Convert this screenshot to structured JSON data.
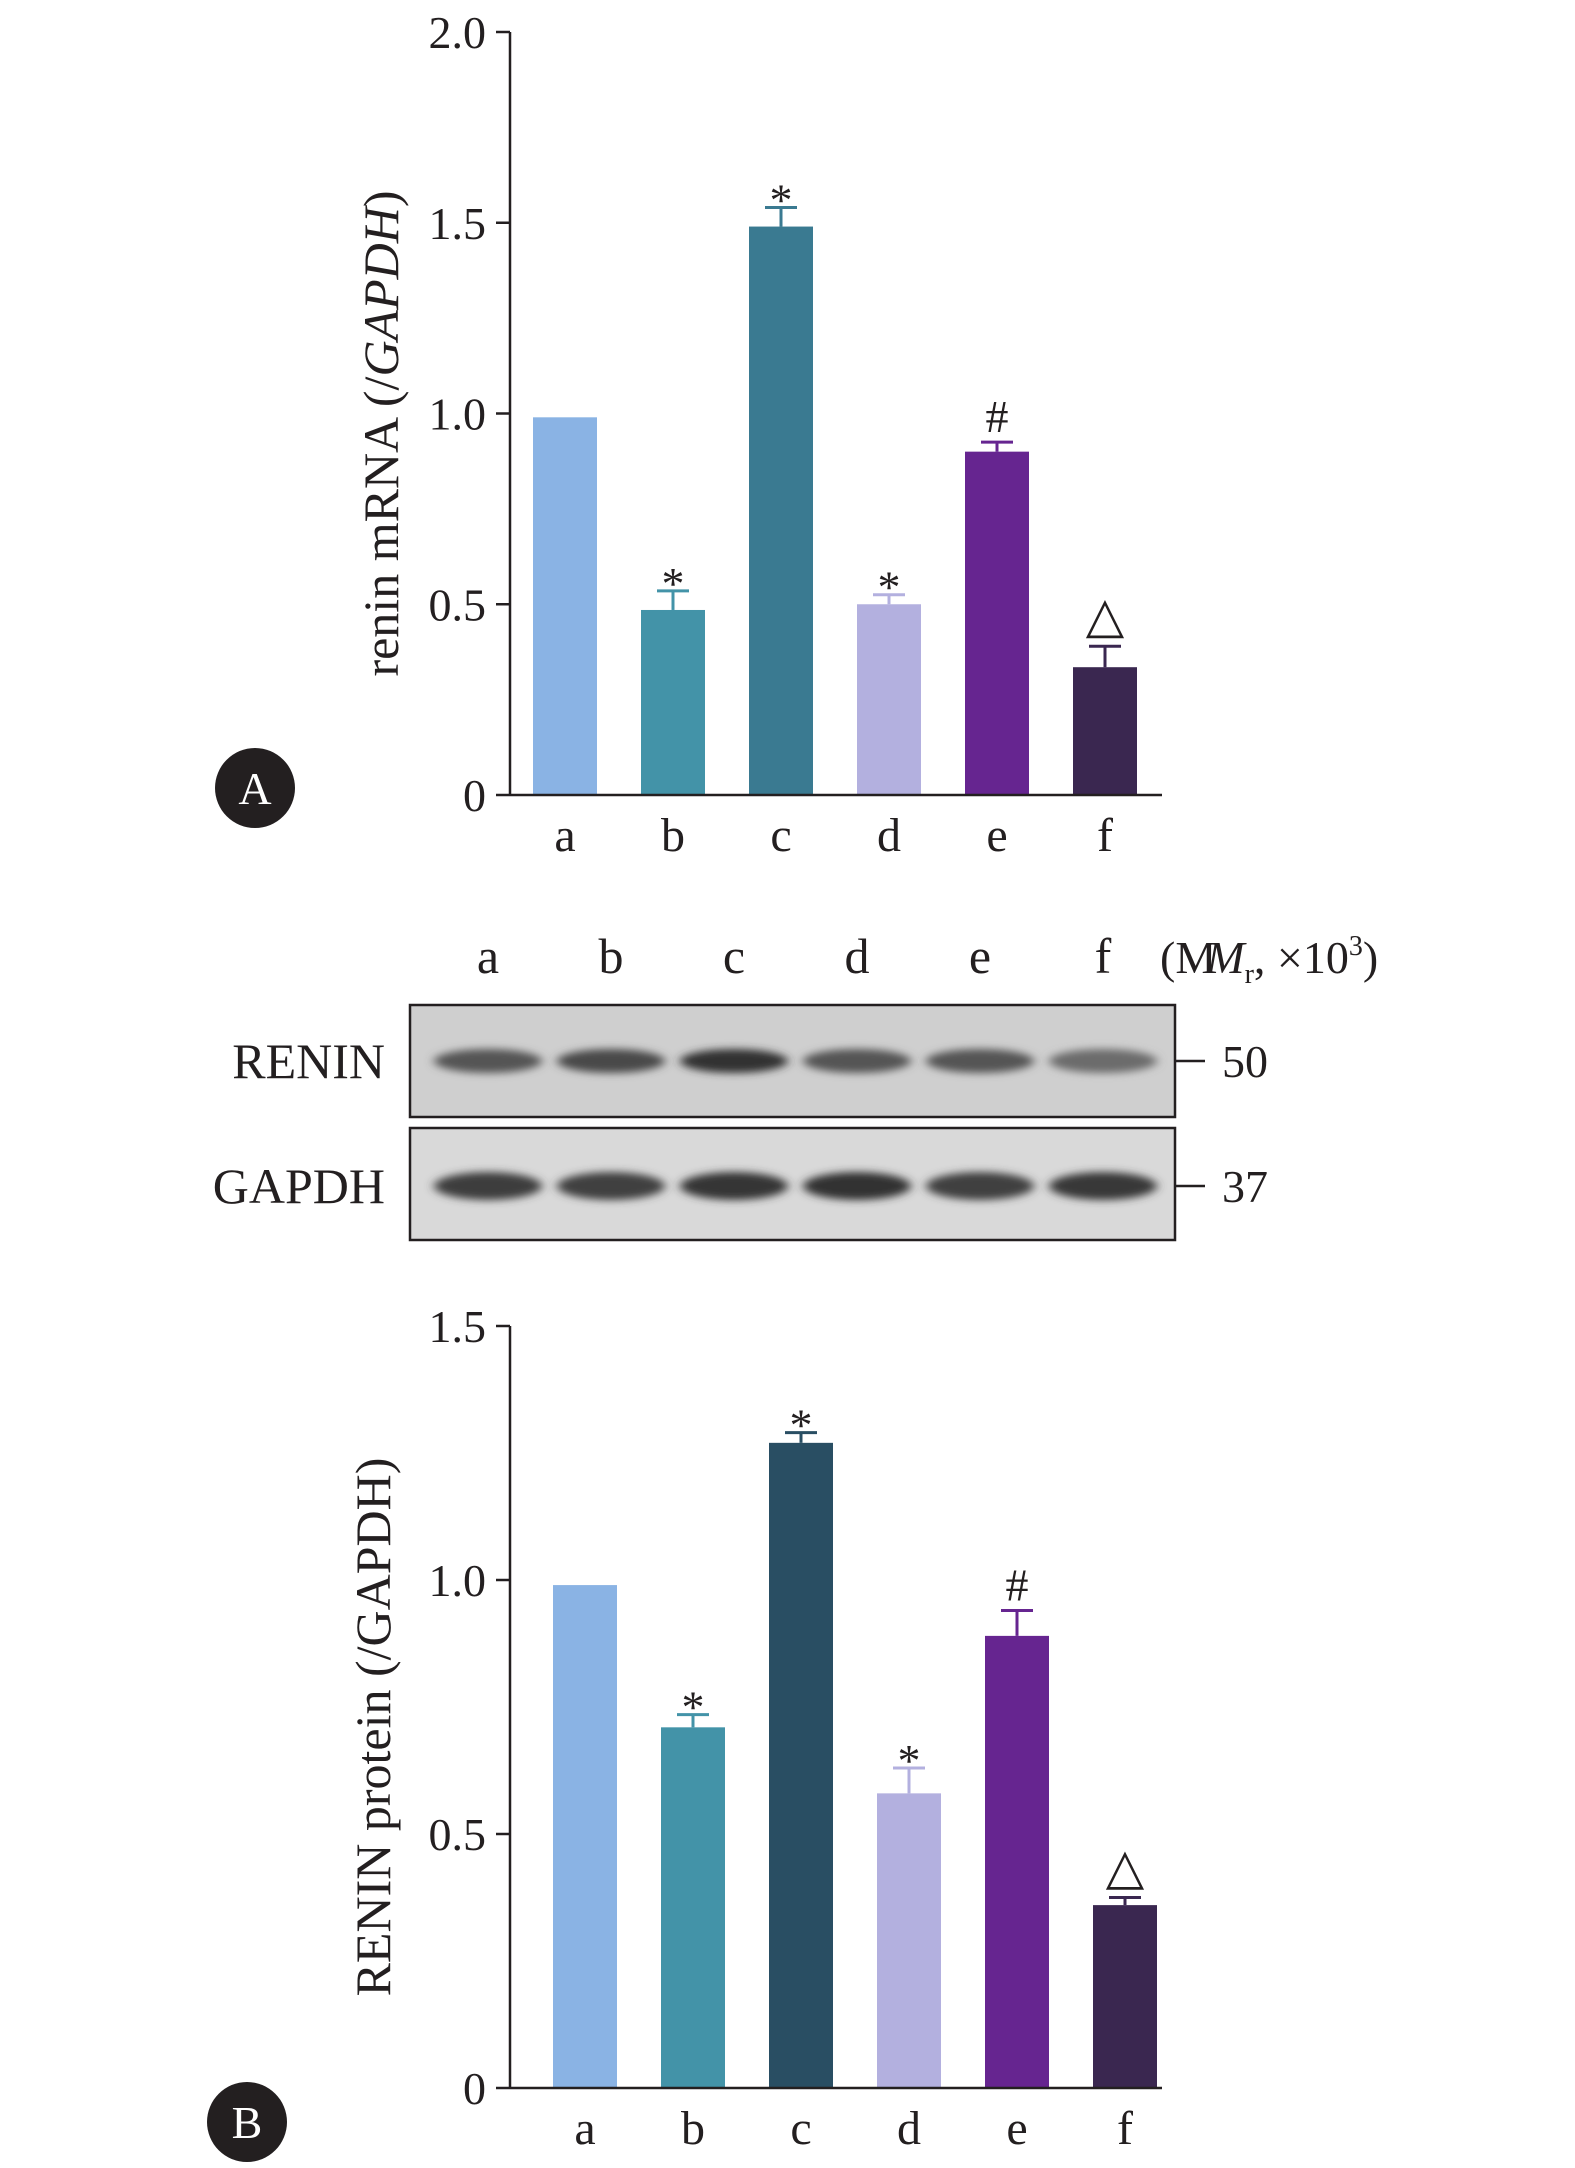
{
  "chart_data": [
    {
      "type": "bar",
      "panel": "A",
      "categories": [
        "a",
        "b",
        "c",
        "d",
        "e",
        "f"
      ],
      "values": [
        0.99,
        0.485,
        1.49,
        0.5,
        0.9,
        0.335
      ],
      "errors": [
        0.0,
        0.05,
        0.05,
        0.025,
        0.025,
        0.055
      ],
      "annotations": [
        "",
        "*",
        "*",
        "*",
        "#",
        "△"
      ],
      "colors": [
        "#8ab3e4",
        "#4393a8",
        "#3a7a91",
        "#b3b0df",
        "#662590",
        "#3a2750"
      ],
      "ylabel": "renin mRNA (/GAPDH)",
      "ylabel_parts": [
        "renin mRNA (/",
        "GAPDH",
        ")"
      ],
      "ylim": [
        0,
        2.0
      ],
      "yticks": [
        0,
        0.5,
        1.0,
        1.5,
        2.0
      ],
      "ytick_labels": [
        "0",
        "0.5",
        "1.0",
        "1.5",
        "2.0"
      ]
    },
    {
      "type": "bar",
      "panel": "B",
      "categories": [
        "a",
        "b",
        "c",
        "d",
        "e",
        "f"
      ],
      "values": [
        0.99,
        0.71,
        1.27,
        0.58,
        0.89,
        0.36
      ],
      "errors": [
        0.0,
        0.025,
        0.02,
        0.05,
        0.05,
        0.015
      ],
      "annotations": [
        "",
        "*",
        "*",
        "*",
        "#",
        "△"
      ],
      "colors": [
        "#8ab3e4",
        "#4393a8",
        "#294e63",
        "#b3b0df",
        "#662590",
        "#3a2750"
      ],
      "ylabel": "RENIN protein (/GAPDH)",
      "ylim": [
        0,
        1.5
      ],
      "yticks": [
        0,
        0.5,
        1.0,
        1.5
      ],
      "ytick_labels": [
        "0",
        "0.5",
        "1.0",
        "1.5"
      ]
    }
  ],
  "panels": {
    "a": "A",
    "b": "B"
  },
  "blot": {
    "lanes": [
      "a",
      "b",
      "c",
      "d",
      "e",
      "f"
    ],
    "mr_unit": "(M",
    "mr_sub": "r",
    "mr_mid": ", ×10",
    "mr_sup": "3",
    "mr_close": ")",
    "rows": [
      {
        "name": "RENIN",
        "marker": "50",
        "band_intensity": [
          0.55,
          0.65,
          0.85,
          0.55,
          0.55,
          0.35
        ]
      },
      {
        "name": "GAPDH",
        "marker": "37",
        "band_intensity": [
          0.75,
          0.72,
          0.8,
          0.85,
          0.72,
          0.78
        ]
      }
    ]
  }
}
